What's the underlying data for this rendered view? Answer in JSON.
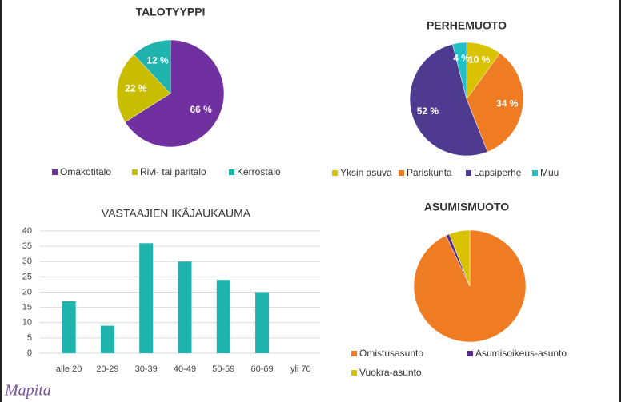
{
  "chart_data": [
    {
      "type": "pie",
      "title": "TALOTYYPPI",
      "categories": [
        "Omakotitalo",
        "Rivi- tai paritalo",
        "Kerrostalo"
      ],
      "values": [
        66,
        22,
        12
      ],
      "value_labels": [
        "66 %",
        "22 %",
        "12 %"
      ],
      "colors": [
        "#7030a0",
        "#c9bd00",
        "#1fb3ad"
      ],
      "legend": "bottom"
    },
    {
      "type": "pie",
      "title": "PERHEMUOTO",
      "categories": [
        "Yksin asuva",
        "Pariskunta",
        "Lapsiperhe",
        "Muu"
      ],
      "values": [
        10,
        34,
        52,
        4
      ],
      "value_labels": [
        "10 %",
        "34 %",
        "52 %",
        "4 %"
      ],
      "colors": [
        "#d9c200",
        "#ef7b22",
        "#4e3a8e",
        "#1fc0c6"
      ],
      "legend": "bottom"
    },
    {
      "type": "bar",
      "title": "VASTAAJIEN IKÄJAUKAUMA",
      "categories": [
        "alle 20",
        "20-29",
        "30-39",
        "40-49",
        "50-59",
        "60-69",
        "yli 70"
      ],
      "values": [
        17,
        9,
        36,
        30,
        24,
        20,
        0
      ],
      "color": "#1fb3ad",
      "ylim": [
        0,
        40
      ],
      "yticks": [
        0,
        5,
        10,
        15,
        20,
        25,
        30,
        35,
        40
      ],
      "grid": true
    },
    {
      "type": "pie",
      "title": "ASUMISMUOTO",
      "categories": [
        "Omistusasunto",
        "Asumisoikeus-asunto",
        "Vuokra-asunto"
      ],
      "values": [
        93,
        1,
        6
      ],
      "colors": [
        "#ef7b22",
        "#5b2c8c",
        "#d9c200"
      ],
      "legend": "bottom"
    }
  ],
  "logo": "Mapita"
}
